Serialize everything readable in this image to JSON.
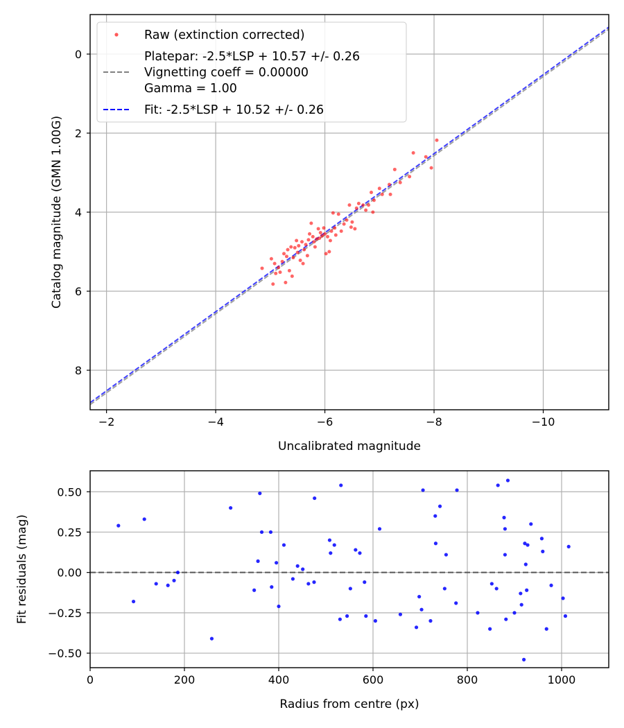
{
  "chart_data": [
    {
      "type": "scatter",
      "title": "",
      "xlabel": "Uncalibrated magnitude",
      "ylabel": "Catalog magnitude (GMN 1.00G)",
      "xlim": [
        -1.7,
        -11.2
      ],
      "ylim": [
        -1.0,
        9.0
      ],
      "x_inverted": true,
      "y_inverted": true,
      "grid": true,
      "xticks": [
        -2,
        -4,
        -6,
        -8,
        -10
      ],
      "xtick_labels": [
        "−2",
        "−4",
        "−6",
        "−8",
        "−10"
      ],
      "yticks": [
        0,
        2,
        4,
        6,
        8
      ],
      "ytick_labels": [
        "0",
        "2",
        "4",
        "6",
        "8"
      ],
      "legend_position": "upper-left",
      "legend": [
        {
          "label": "Raw (extinction corrected)",
          "marker": "dot",
          "color": "#ff0000"
        },
        {
          "label_lines": [
            "Platepar: -2.5*LSP + 10.57 +/- 0.26",
            "Vignetting coeff = 0.00000",
            "Gamma = 1.00"
          ],
          "marker": "dashed-line",
          "color": "#808080"
        },
        {
          "label": "Fit: -2.5*LSP + 10.52 +/- 0.26",
          "marker": "dashed-line",
          "color": "#0000ff"
        }
      ],
      "series": [
        {
          "name": "Raw (extinction corrected)",
          "kind": "points",
          "color": "#ff0000",
          "points": [
            [
              -4.85,
              5.42
            ],
            [
              -5.02,
              5.18
            ],
            [
              -5.05,
              5.82
            ],
            [
              -5.08,
              5.3
            ],
            [
              -5.1,
              5.55
            ],
            [
              -5.15,
              5.4
            ],
            [
              -5.18,
              5.52
            ],
            [
              -5.22,
              5.25
            ],
            [
              -5.25,
              5.05
            ],
            [
              -5.28,
              5.78
            ],
            [
              -5.3,
              5.12
            ],
            [
              -5.32,
              4.95
            ],
            [
              -5.35,
              5.48
            ],
            [
              -5.38,
              4.88
            ],
            [
              -5.4,
              5.62
            ],
            [
              -5.42,
              5.15
            ],
            [
              -5.45,
              4.9
            ],
            [
              -5.48,
              4.72
            ],
            [
              -5.5,
              5.02
            ],
            [
              -5.52,
              4.85
            ],
            [
              -5.55,
              5.22
            ],
            [
              -5.58,
              4.75
            ],
            [
              -5.6,
              5.3
            ],
            [
              -5.62,
              4.95
            ],
            [
              -5.65,
              4.82
            ],
            [
              -5.68,
              5.1
            ],
            [
              -5.7,
              4.7
            ],
            [
              -5.72,
              4.55
            ],
            [
              -5.75,
              4.28
            ],
            [
              -5.78,
              4.62
            ],
            [
              -5.8,
              4.75
            ],
            [
              -5.82,
              4.88
            ],
            [
              -5.85,
              4.68
            ],
            [
              -5.88,
              4.42
            ],
            [
              -5.9,
              4.66
            ],
            [
              -5.92,
              4.52
            ],
            [
              -5.95,
              4.6
            ],
            [
              -5.98,
              4.4
            ],
            [
              -6.0,
              4.55
            ],
            [
              -6.02,
              5.05
            ],
            [
              -6.05,
              4.62
            ],
            [
              -6.08,
              5.0
            ],
            [
              -6.1,
              4.72
            ],
            [
              -6.12,
              4.48
            ],
            [
              -6.15,
              4.02
            ],
            [
              -6.18,
              4.4
            ],
            [
              -6.2,
              4.58
            ],
            [
              -6.25,
              4.05
            ],
            [
              -6.3,
              4.48
            ],
            [
              -6.35,
              4.3
            ],
            [
              -6.4,
              4.2
            ],
            [
              -6.45,
              3.82
            ],
            [
              -6.48,
              4.38
            ],
            [
              -6.5,
              4.25
            ],
            [
              -6.55,
              4.42
            ],
            [
              -6.58,
              3.9
            ],
            [
              -6.62,
              3.78
            ],
            [
              -6.7,
              3.82
            ],
            [
              -6.75,
              3.95
            ],
            [
              -6.8,
              3.82
            ],
            [
              -6.85,
              3.5
            ],
            [
              -6.88,
              4.0
            ],
            [
              -6.9,
              3.7
            ],
            [
              -7.0,
              3.4
            ],
            [
              -7.05,
              3.55
            ],
            [
              -7.18,
              3.3
            ],
            [
              -7.2,
              3.55
            ],
            [
              -7.28,
              2.92
            ],
            [
              -7.38,
              3.25
            ],
            [
              -7.55,
              3.1
            ],
            [
              -7.62,
              2.5
            ],
            [
              -7.85,
              2.6
            ],
            [
              -7.95,
              2.88
            ],
            [
              -8.05,
              2.18
            ]
          ]
        },
        {
          "name": "Platepar",
          "kind": "line",
          "color": "#808080",
          "slope": 1.0,
          "intercept": 10.57
        },
        {
          "name": "Fit",
          "kind": "line",
          "color": "#0000ff",
          "slope": 1.0,
          "intercept": 10.52
        }
      ]
    },
    {
      "type": "scatter",
      "title": "",
      "xlabel": "Radius from centre (px)",
      "ylabel": "Fit residuals (mag)",
      "xlim": [
        0,
        1100
      ],
      "ylim": [
        -0.59,
        0.63
      ],
      "grid": true,
      "xticks": [
        0,
        200,
        400,
        600,
        800,
        1000
      ],
      "xtick_labels": [
        "0",
        "200",
        "400",
        "600",
        "800",
        "1000"
      ],
      "yticks": [
        -0.5,
        -0.25,
        0.0,
        0.25,
        0.5
      ],
      "ytick_labels": [
        "−0.50",
        "−0.25",
        "0.00",
        "0.25",
        "0.50"
      ],
      "reference_line": {
        "y": 0.0,
        "style": "dashed",
        "color": "#555555"
      },
      "series": [
        {
          "name": "Residuals",
          "kind": "points",
          "color": "#0000ff",
          "points": [
            [
              60,
              0.29
            ],
            [
              92,
              -0.18
            ],
            [
              115,
              0.33
            ],
            [
              140,
              -0.07
            ],
            [
              165,
              -0.08
            ],
            [
              178,
              -0.05
            ],
            [
              186,
              0.0
            ],
            [
              258,
              -0.41
            ],
            [
              298,
              0.4
            ],
            [
              348,
              -0.11
            ],
            [
              356,
              0.07
            ],
            [
              360,
              0.49
            ],
            [
              364,
              0.25
            ],
            [
              383,
              0.25
            ],
            [
              385,
              -0.09
            ],
            [
              395,
              0.06
            ],
            [
              400,
              -0.21
            ],
            [
              411,
              0.17
            ],
            [
              430,
              -0.04
            ],
            [
              440,
              0.04
            ],
            [
              451,
              0.02
            ],
            [
              463,
              -0.07
            ],
            [
              475,
              -0.06
            ],
            [
              476,
              0.46
            ],
            [
              508,
              0.2
            ],
            [
              510,
              0.12
            ],
            [
              518,
              0.17
            ],
            [
              530,
              -0.29
            ],
            [
              532,
              0.54
            ],
            [
              545,
              -0.27
            ],
            [
              552,
              -0.1
            ],
            [
              563,
              0.14
            ],
            [
              572,
              0.12
            ],
            [
              582,
              -0.06
            ],
            [
              585,
              -0.27
            ],
            [
              605,
              -0.3
            ],
            [
              614,
              0.27
            ],
            [
              658,
              -0.26
            ],
            [
              692,
              -0.34
            ],
            [
              698,
              -0.15
            ],
            [
              703,
              -0.23
            ],
            [
              706,
              0.51
            ],
            [
              722,
              -0.3
            ],
            [
              732,
              0.35
            ],
            [
              733,
              0.18
            ],
            [
              742,
              0.41
            ],
            [
              752,
              -0.1
            ],
            [
              755,
              0.11
            ],
            [
              776,
              -0.19
            ],
            [
              778,
              0.51
            ],
            [
              822,
              -0.25
            ],
            [
              848,
              -0.35
            ],
            [
              852,
              -0.07
            ],
            [
              862,
              -0.1
            ],
            [
              865,
              0.54
            ],
            [
              878,
              0.34
            ],
            [
              880,
              0.27
            ],
            [
              880,
              0.11
            ],
            [
              882,
              -0.29
            ],
            [
              886,
              0.57
            ],
            [
              900,
              -0.25
            ],
            [
              913,
              -0.13
            ],
            [
              915,
              -0.2
            ],
            [
              920,
              -0.54
            ],
            [
              922,
              0.18
            ],
            [
              924,
              0.05
            ],
            [
              926,
              -0.11
            ],
            [
              928,
              0.17
            ],
            [
              935,
              0.3
            ],
            [
              958,
              0.21
            ],
            [
              960,
              0.13
            ],
            [
              968,
              -0.35
            ],
            [
              978,
              -0.08
            ],
            [
              1003,
              -0.16
            ],
            [
              1008,
              -0.27
            ],
            [
              1015,
              0.16
            ]
          ]
        }
      ]
    }
  ]
}
